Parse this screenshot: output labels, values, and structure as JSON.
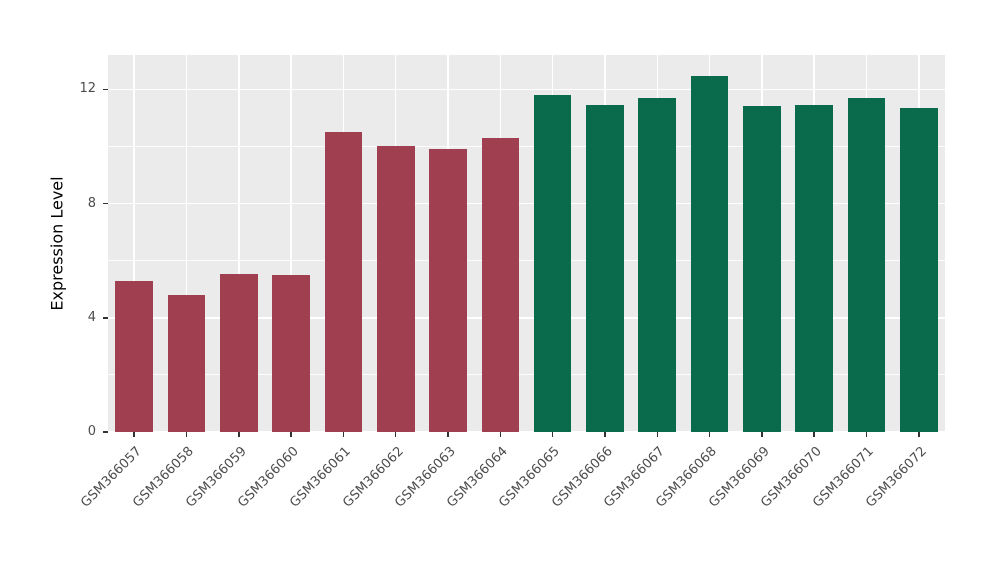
{
  "chart_data": {
    "type": "bar",
    "title": "",
    "xlabel": "",
    "ylabel": "Expression Level",
    "categories": [
      "GSM366057",
      "GSM366058",
      "GSM366059",
      "GSM366060",
      "GSM366061",
      "GSM366062",
      "GSM366063",
      "GSM366064",
      "GSM366065",
      "GSM366066",
      "GSM366067",
      "GSM366068",
      "GSM366069",
      "GSM366070",
      "GSM366071",
      "GSM366072"
    ],
    "values": [
      5.3,
      4.8,
      5.55,
      5.5,
      10.5,
      10.0,
      9.9,
      10.3,
      11.8,
      11.45,
      11.7,
      12.45,
      11.4,
      11.45,
      11.7,
      11.35
    ],
    "colors": [
      "#9F3F4F",
      "#9F3F4F",
      "#9F3F4F",
      "#9F3F4F",
      "#9F3F4F",
      "#9F3F4F",
      "#9F3F4F",
      "#9F3F4F",
      "#0A6B4C",
      "#0A6B4C",
      "#0A6B4C",
      "#0A6B4C",
      "#0A6B4C",
      "#0A6B4C",
      "#0A6B4C",
      "#0A6B4C"
    ],
    "group_colors": {
      "first_group": "#9F3F4F",
      "second_group": "#0A6B4C"
    },
    "ylim": [
      0,
      13.2
    ],
    "yticks_major": [
      0,
      4,
      8,
      12
    ],
    "yticks_minor": [
      2,
      6,
      10
    ],
    "grid": "on",
    "legend": "none",
    "panel_background": "#EBEBEB",
    "gridline_color": "#FFFFFF",
    "figure_background": "#FFFFFF"
  }
}
